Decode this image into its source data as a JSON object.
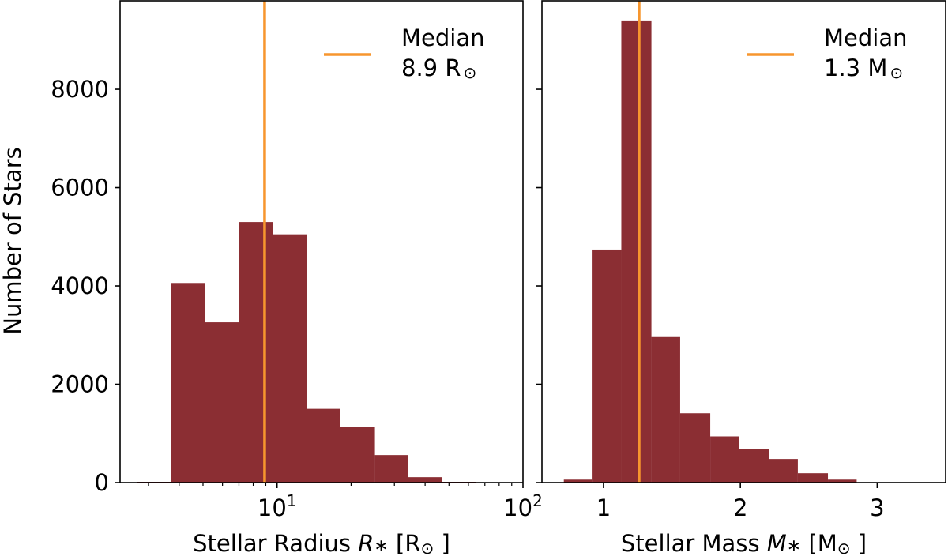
{
  "figure": {
    "ylabel": "Number of Stars",
    "bar_color": "#8b2e33",
    "median_color": "#f7962e"
  },
  "chart_data": [
    {
      "type": "bar",
      "xlabel_plain": "Stellar Radius ",
      "xlabel_symbol": "R",
      "xlabel_sub": "∗",
      "xlabel_unit_pre": "[R",
      "xlabel_unit_sym": "⊙",
      "xlabel_unit_post": "]",
      "xscale": "log",
      "xlim": [
        2.3,
        100
      ],
      "ylim": [
        0,
        9800
      ],
      "xtick_labels": [
        {
          "value": 10,
          "base": "10",
          "exp": "1"
        },
        {
          "value": 100,
          "base": "10",
          "exp": "2"
        }
      ],
      "ytick_labels": [
        "0",
        "2000",
        "4000",
        "6000",
        "8000"
      ],
      "ytick_values": [
        0,
        2000,
        4000,
        6000,
        8000
      ],
      "bins": [
        {
          "x0": 2.7,
          "x1": 3.7,
          "count": 0
        },
        {
          "x0": 3.7,
          "x1": 5.1,
          "count": 4060
        },
        {
          "x0": 5.1,
          "x1": 7.0,
          "count": 3260
        },
        {
          "x0": 7.0,
          "x1": 9.6,
          "count": 5300
        },
        {
          "x0": 9.6,
          "x1": 13.2,
          "count": 5050
        },
        {
          "x0": 13.2,
          "x1": 18.1,
          "count": 1500
        },
        {
          "x0": 18.1,
          "x1": 25.0,
          "count": 1130
        },
        {
          "x0": 25.0,
          "x1": 34.2,
          "count": 560
        },
        {
          "x0": 34.2,
          "x1": 47.0,
          "count": 110
        },
        {
          "x0": 47.0,
          "x1": 64.6,
          "count": 0
        }
      ],
      "median": 8.9,
      "legend": {
        "title": "Median",
        "value": "8.9",
        "unit_letter": "R",
        "unit_sym": "⊙",
        "position": "top-right"
      }
    },
    {
      "type": "bar",
      "xlabel_plain": "Stellar Mass ",
      "xlabel_symbol": "M",
      "xlabel_sub": "∗",
      "xlabel_unit_pre": "[M",
      "xlabel_unit_sym": "⊙",
      "xlabel_unit_post": "]",
      "xscale": "linear",
      "xlim": [
        0.55,
        3.5
      ],
      "ylim": [
        0,
        9800
      ],
      "xtick_labels": [
        {
          "value": 1,
          "base": "1",
          "exp": ""
        },
        {
          "value": 2,
          "base": "2",
          "exp": ""
        },
        {
          "value": 3,
          "base": "3",
          "exp": ""
        }
      ],
      "ytick_values": [
        0,
        2000,
        4000,
        6000,
        8000
      ],
      "bins": [
        {
          "x0": 0.71,
          "x1": 0.92,
          "count": 60
        },
        {
          "x0": 0.92,
          "x1": 1.13,
          "count": 4740
        },
        {
          "x0": 1.13,
          "x1": 1.35,
          "count": 9400
        },
        {
          "x0": 1.35,
          "x1": 1.56,
          "count": 2960
        },
        {
          "x0": 1.56,
          "x1": 1.78,
          "count": 1410
        },
        {
          "x0": 1.78,
          "x1": 1.99,
          "count": 940
        },
        {
          "x0": 1.99,
          "x1": 2.21,
          "count": 680
        },
        {
          "x0": 2.21,
          "x1": 2.42,
          "count": 480
        },
        {
          "x0": 2.42,
          "x1": 2.64,
          "count": 190
        },
        {
          "x0": 2.64,
          "x1": 2.85,
          "count": 60
        }
      ],
      "median": 1.26,
      "legend": {
        "title": "Median",
        "value": "1.3",
        "unit_letter": "M",
        "unit_sym": "⊙",
        "position": "top-right"
      }
    }
  ]
}
